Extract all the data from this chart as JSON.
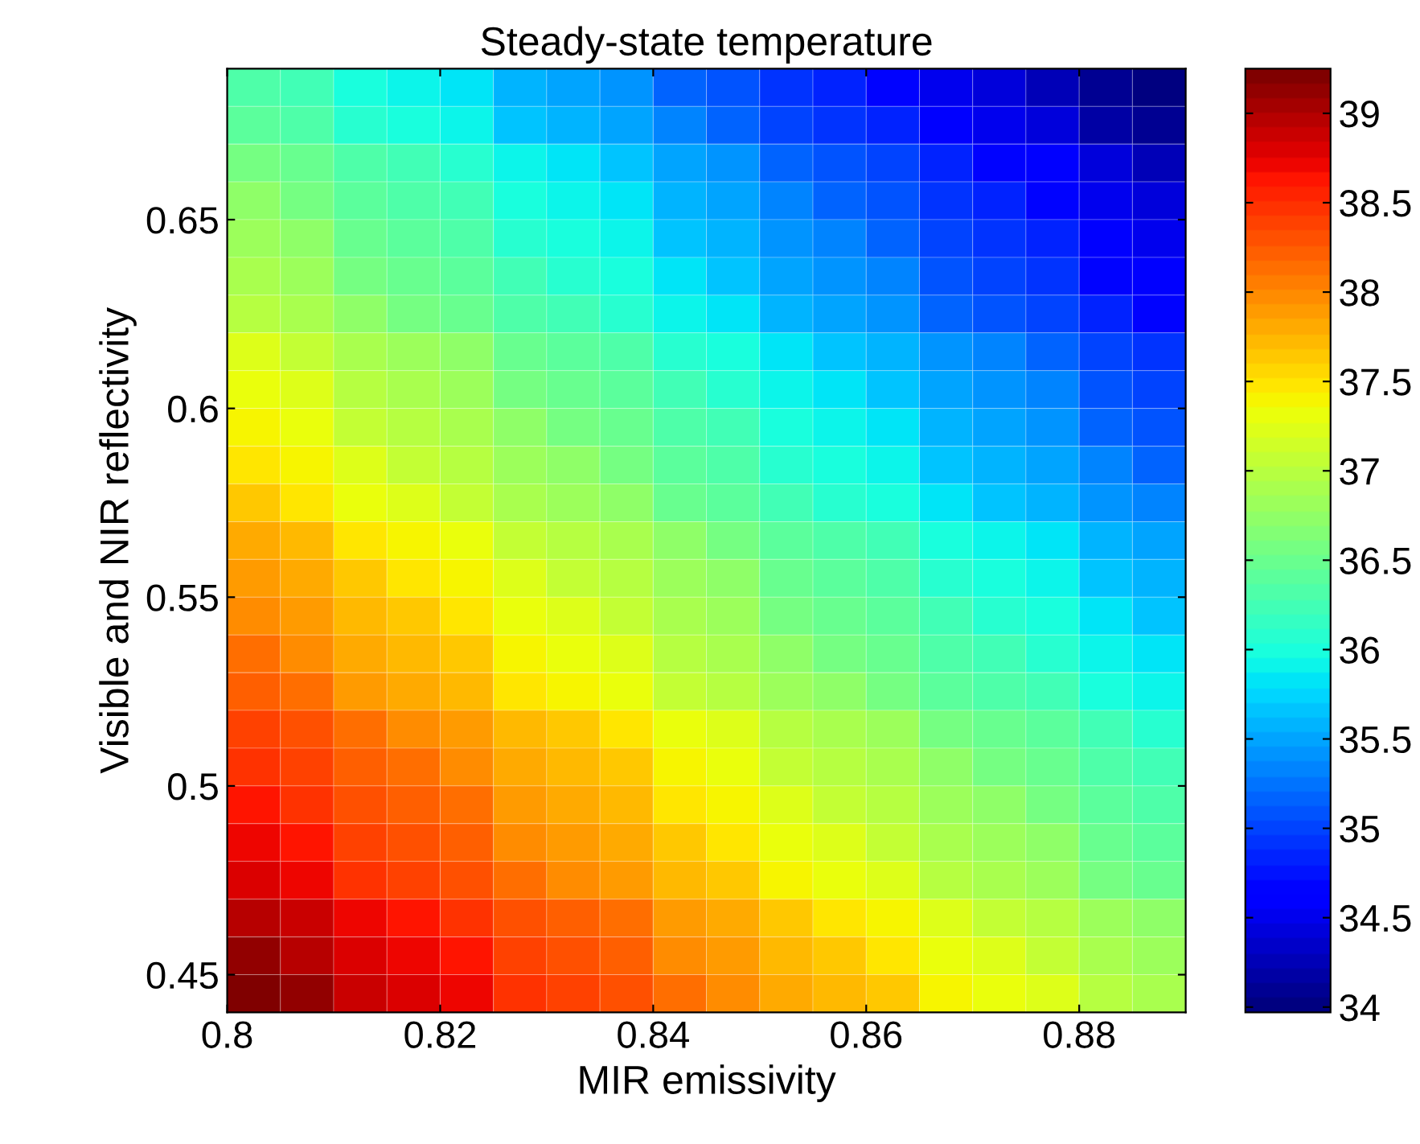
{
  "chart_data": {
    "type": "heatmap",
    "title": "Steady-state temperature",
    "xlabel": "MIR emissivity",
    "ylabel": "Visible and NIR reflectivity",
    "x": [
      0.8025,
      0.8075,
      0.8125,
      0.8175,
      0.8225,
      0.8275,
      0.8325,
      0.8375,
      0.8425,
      0.8475,
      0.8525,
      0.8575,
      0.8625,
      0.8675,
      0.8725,
      0.8775,
      0.8825,
      0.8875
    ],
    "y": [
      0.685,
      0.675,
      0.665,
      0.655,
      0.645,
      0.635,
      0.625,
      0.615,
      0.605,
      0.595,
      0.585,
      0.575,
      0.565,
      0.555,
      0.545,
      0.535,
      0.525,
      0.515,
      0.505,
      0.495,
      0.485,
      0.475,
      0.465,
      0.455,
      0.445
    ],
    "cells": [
      [
        36.3,
        36.2,
        36.0,
        35.9,
        35.8,
        35.6,
        35.5,
        35.4,
        35.2,
        35.1,
        34.9,
        34.8,
        34.7,
        34.5,
        34.4,
        34.3,
        34.1,
        34.0
      ],
      [
        36.4,
        36.3,
        36.1,
        36.0,
        35.9,
        35.7,
        35.6,
        35.5,
        35.3,
        35.2,
        35.0,
        34.9,
        34.8,
        34.6,
        34.5,
        34.4,
        34.2,
        34.1
      ],
      [
        36.6,
        36.5,
        36.3,
        36.2,
        36.1,
        35.9,
        35.8,
        35.7,
        35.5,
        35.4,
        35.2,
        35.1,
        35.0,
        34.8,
        34.7,
        34.6,
        34.4,
        34.3
      ],
      [
        36.7,
        36.6,
        36.4,
        36.3,
        36.2,
        36.0,
        35.9,
        35.8,
        35.6,
        35.5,
        35.3,
        35.2,
        35.1,
        34.9,
        34.8,
        34.7,
        34.5,
        34.4
      ],
      [
        36.8,
        36.7,
        36.5,
        36.4,
        36.3,
        36.1,
        36.0,
        35.9,
        35.7,
        35.6,
        35.4,
        35.3,
        35.2,
        35.0,
        34.9,
        34.8,
        34.6,
        34.5
      ],
      [
        36.9,
        36.8,
        36.6,
        36.5,
        36.4,
        36.2,
        36.1,
        36.0,
        35.8,
        35.7,
        35.5,
        35.4,
        35.3,
        35.1,
        35.0,
        34.9,
        34.7,
        34.6
      ],
      [
        37.0,
        36.9,
        36.7,
        36.6,
        36.5,
        36.3,
        36.2,
        36.1,
        35.9,
        35.8,
        35.6,
        35.5,
        35.4,
        35.2,
        35.1,
        35.0,
        34.8,
        34.7
      ],
      [
        37.2,
        37.1,
        36.9,
        36.8,
        36.7,
        36.5,
        36.4,
        36.3,
        36.1,
        36.0,
        35.8,
        35.7,
        35.6,
        35.4,
        35.3,
        35.2,
        35.0,
        34.9
      ],
      [
        37.3,
        37.2,
        37.0,
        36.9,
        36.8,
        36.6,
        36.5,
        36.4,
        36.2,
        36.1,
        35.9,
        35.8,
        35.7,
        35.5,
        35.4,
        35.3,
        35.1,
        35.0
      ],
      [
        37.4,
        37.3,
        37.1,
        37.0,
        36.9,
        36.7,
        36.6,
        36.5,
        36.3,
        36.2,
        36.0,
        35.9,
        35.8,
        35.6,
        35.5,
        35.4,
        35.2,
        35.1
      ],
      [
        37.5,
        37.4,
        37.2,
        37.1,
        37.0,
        36.8,
        36.7,
        36.6,
        36.4,
        36.3,
        36.1,
        36.0,
        35.9,
        35.7,
        35.6,
        35.5,
        35.3,
        35.2
      ],
      [
        37.6,
        37.5,
        37.3,
        37.2,
        37.1,
        36.9,
        36.8,
        36.7,
        36.5,
        36.4,
        36.2,
        36.1,
        36.0,
        35.8,
        35.7,
        35.6,
        35.4,
        35.3
      ],
      [
        37.8,
        37.7,
        37.5,
        37.4,
        37.3,
        37.1,
        37.0,
        36.9,
        36.7,
        36.6,
        36.4,
        36.3,
        36.2,
        36.0,
        35.9,
        35.8,
        35.6,
        35.5
      ],
      [
        37.9,
        37.8,
        37.6,
        37.5,
        37.4,
        37.2,
        37.1,
        37.0,
        36.8,
        36.7,
        36.5,
        36.4,
        36.3,
        36.1,
        36.0,
        35.9,
        35.7,
        35.6
      ],
      [
        38.0,
        37.9,
        37.7,
        37.6,
        37.5,
        37.3,
        37.2,
        37.1,
        36.9,
        36.8,
        36.6,
        36.5,
        36.4,
        36.2,
        36.1,
        36.0,
        35.8,
        35.7
      ],
      [
        38.1,
        38.0,
        37.8,
        37.7,
        37.6,
        37.4,
        37.3,
        37.2,
        37.0,
        36.9,
        36.7,
        36.6,
        36.5,
        36.3,
        36.2,
        36.1,
        35.9,
        35.8
      ],
      [
        38.2,
        38.1,
        37.9,
        37.8,
        37.7,
        37.5,
        37.4,
        37.3,
        37.1,
        37.0,
        36.8,
        36.7,
        36.6,
        36.4,
        36.3,
        36.2,
        36.0,
        35.9
      ],
      [
        38.4,
        38.3,
        38.1,
        38.0,
        37.9,
        37.7,
        37.6,
        37.5,
        37.3,
        37.2,
        37.0,
        36.9,
        36.8,
        36.6,
        36.5,
        36.4,
        36.2,
        36.1
      ],
      [
        38.5,
        38.4,
        38.2,
        38.1,
        38.0,
        37.8,
        37.7,
        37.6,
        37.4,
        37.3,
        37.1,
        37.0,
        36.9,
        36.7,
        36.6,
        36.5,
        36.3,
        36.2
      ],
      [
        38.6,
        38.5,
        38.3,
        38.2,
        38.1,
        37.9,
        37.8,
        37.7,
        37.5,
        37.4,
        37.2,
        37.1,
        37.0,
        36.8,
        36.7,
        36.6,
        36.4,
        36.3
      ],
      [
        38.7,
        38.6,
        38.4,
        38.3,
        38.2,
        38.0,
        37.9,
        37.8,
        37.6,
        37.5,
        37.3,
        37.2,
        37.1,
        36.9,
        36.8,
        36.7,
        36.5,
        36.4
      ],
      [
        38.8,
        38.7,
        38.5,
        38.4,
        38.3,
        38.1,
        38.0,
        37.9,
        37.7,
        37.6,
        37.4,
        37.3,
        37.2,
        37.0,
        36.9,
        36.8,
        36.6,
        36.5
      ],
      [
        39.0,
        38.9,
        38.7,
        38.6,
        38.5,
        38.3,
        38.2,
        38.1,
        37.9,
        37.8,
        37.6,
        37.5,
        37.4,
        37.2,
        37.1,
        37.0,
        36.8,
        36.7
      ],
      [
        39.1,
        39.0,
        38.8,
        38.7,
        38.6,
        38.4,
        38.3,
        38.2,
        38.0,
        37.9,
        37.7,
        37.6,
        37.5,
        37.3,
        37.2,
        37.1,
        36.9,
        36.8
      ],
      [
        39.2,
        39.1,
        38.9,
        38.8,
        38.7,
        38.5,
        38.4,
        38.3,
        38.1,
        38.0,
        37.8,
        37.7,
        37.6,
        37.4,
        37.3,
        37.2,
        37.0,
        36.9
      ]
    ],
    "xlim": [
      0.8,
      0.89
    ],
    "ylim": [
      0.44,
      0.69
    ],
    "xticks": [
      0.8,
      0.82,
      0.84,
      0.86,
      0.88
    ],
    "yticks": [
      0.45,
      0.5,
      0.55,
      0.6,
      0.65
    ],
    "clim": [
      33.97,
      39.25
    ],
    "cticks": [
      34,
      34.5,
      35,
      35.5,
      36,
      36.5,
      37,
      37.5,
      38,
      38.5,
      39
    ]
  }
}
